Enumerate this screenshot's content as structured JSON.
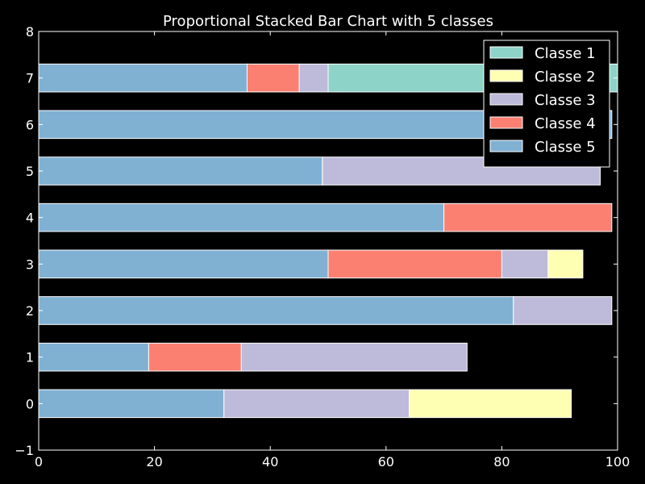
{
  "chart_data": {
    "type": "bar",
    "orientation": "horizontal",
    "stacked": true,
    "title": "Proportional Stacked Bar Chart with 5 classes",
    "xlabel": "",
    "ylabel": "",
    "xlim": [
      0,
      100
    ],
    "ylim": [
      -1,
      8
    ],
    "xticks": [
      "0",
      "20",
      "40",
      "60",
      "80",
      "100"
    ],
    "yticks": [
      "−1",
      "0",
      "1",
      "2",
      "3",
      "4",
      "5",
      "6",
      "7",
      "8"
    ],
    "grid": false,
    "legend_position": "top-right",
    "categories": [
      0,
      1,
      2,
      3,
      4,
      5,
      6,
      7
    ],
    "stack_order": [
      "Classe 5",
      "Classe 4",
      "Classe 3",
      "Classe 2",
      "Classe 1"
    ],
    "series": [
      {
        "name": "Classe 1",
        "color": "#8dd3c7",
        "values": [
          0,
          0,
          0,
          0,
          0,
          0,
          0,
          50
        ]
      },
      {
        "name": "Classe 2",
        "color": "#ffffb3",
        "values": [
          28,
          0,
          0,
          6,
          0,
          0,
          0,
          0
        ]
      },
      {
        "name": "Classe 3",
        "color": "#bebada",
        "values": [
          32,
          39,
          17,
          8,
          0,
          48,
          0,
          5
        ]
      },
      {
        "name": "Classe 4",
        "color": "#fb8072",
        "values": [
          0,
          16,
          0,
          30,
          29,
          0,
          0,
          9
        ]
      },
      {
        "name": "Classe 5",
        "color": "#80b1d3",
        "values": [
          32,
          19,
          82,
          50,
          70,
          49,
          99,
          36
        ]
      }
    ],
    "legend_order": [
      "Classe 1",
      "Classe 2",
      "Classe 3",
      "Classe 4",
      "Classe 5"
    ]
  },
  "colors": {
    "background": "#000000",
    "axes_edge": "#ffffff",
    "bar_edge": "#ffffff",
    "text": "#ffffff"
  }
}
